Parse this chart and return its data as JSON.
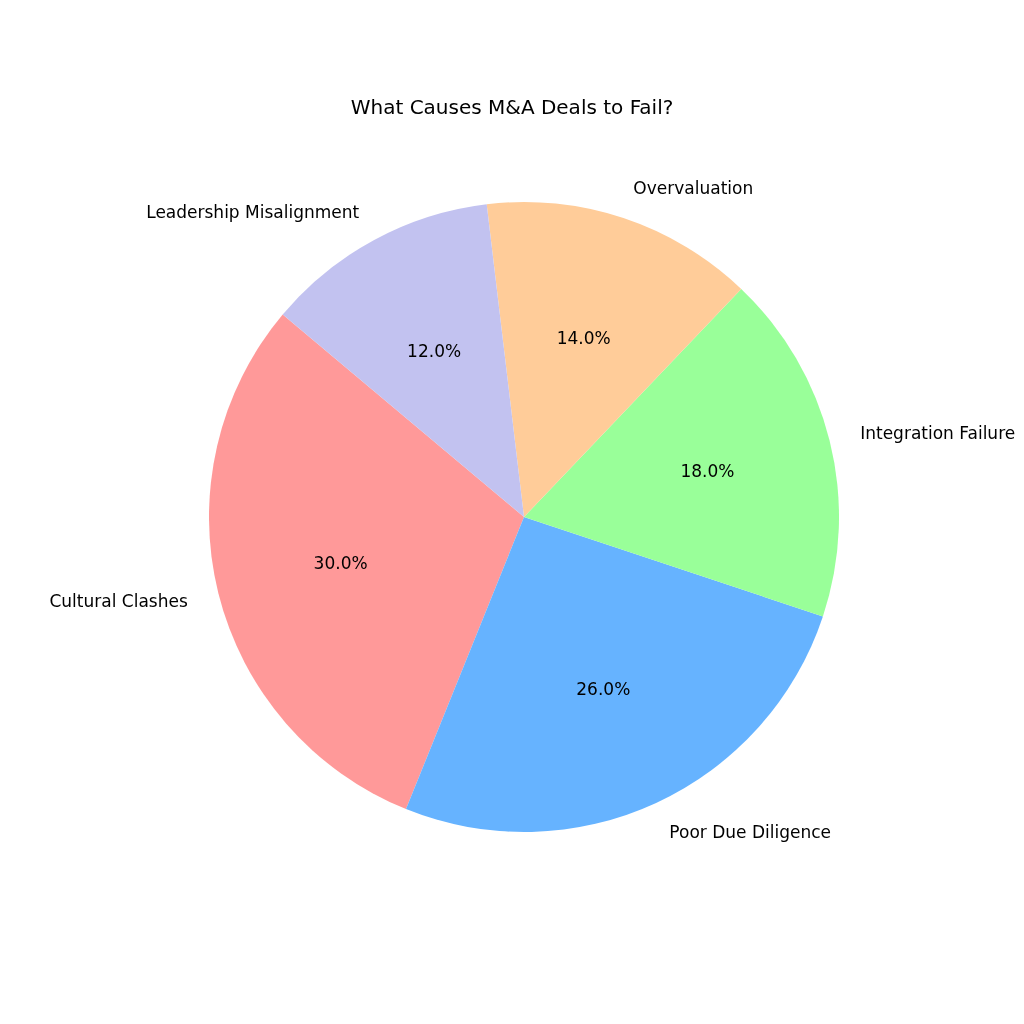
{
  "chart_data": {
    "type": "pie",
    "title": "What Causes M&A Deals to Fail?",
    "categories": [
      "Cultural Clashes",
      "Poor Due Diligence",
      "Integration Failure",
      "Overvaluation",
      "Leadership Misalignment"
    ],
    "values": [
      30,
      26,
      18,
      14,
      12
    ],
    "colors": [
      "#ff9999",
      "#66b3ff",
      "#99ff99",
      "#ffcc99",
      "#c2c2f0"
    ],
    "value_labels": [
      "30.0%",
      "26.0%",
      "18.0%",
      "14.0%",
      "12.0%"
    ],
    "legend": false
  }
}
